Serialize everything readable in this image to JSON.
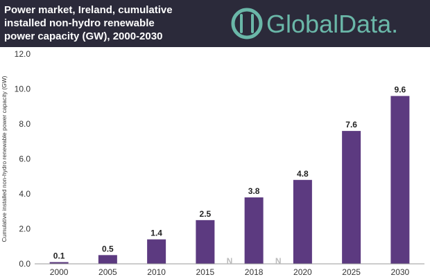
{
  "header": {
    "title_lines": [
      "Power market, Ireland, cumulative",
      "installed non-hydro renewable",
      "power capacity (GW), 2000-2030"
    ],
    "brand": "GlobalData."
  },
  "colors": {
    "bar": "#5c3a80",
    "header_bg": "#2b2a3a",
    "brand": "#6ab7a8"
  },
  "icons": {
    "logo": "globaldata-logo-icon"
  },
  "chart_data": {
    "type": "bar",
    "ylabel": "Cumulative installed non-hydro renewable power capacity (GW)",
    "xlabel": "",
    "ylim": [
      0,
      12
    ],
    "ytick_values": [
      0,
      2,
      4,
      6,
      8,
      10,
      12
    ],
    "ytick_labels": [
      "0.0",
      "2.0",
      "4.0",
      "6.0",
      "8.0",
      "10.0",
      "12.0"
    ],
    "categories": [
      "2000",
      "2005",
      "2010",
      "2015",
      "2018",
      "2020",
      "2025",
      "2030"
    ],
    "values": [
      0.1,
      0.5,
      1.4,
      2.5,
      3.8,
      4.8,
      7.6,
      9.6
    ],
    "value_labels": [
      "0.1",
      "0.5",
      "1.4",
      "2.5",
      "3.8",
      "4.8",
      "7.6",
      "9.6"
    ],
    "axis_break_markers": [
      "N",
      "N"
    ],
    "grid": false
  }
}
